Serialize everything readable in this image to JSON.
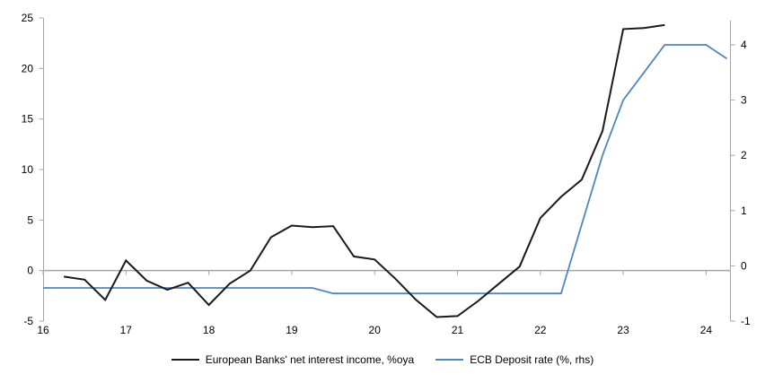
{
  "colors": {
    "axis_gray": "#a6a6a6",
    "zero_line_gray": "#a6a6a6",
    "black_series": "#1a1a1a",
    "blue_series": "#4e86be",
    "background": "#ffffff"
  },
  "legend": {
    "items": [
      {
        "label": "European Banks' net interest income, %oya"
      },
      {
        "label": "ECB Deposit rate (%, rhs)"
      }
    ]
  },
  "chart_data": {
    "type": "line",
    "title": "",
    "xlabel": "",
    "ylabel": "",
    "grid": false,
    "zero_line": true,
    "legend_position": "bottom-center",
    "x_axis": {
      "min": 16,
      "max": 24.3,
      "tick_values": [
        16,
        17,
        18,
        19,
        20,
        21,
        22,
        23,
        24
      ],
      "tick_labels": [
        "16",
        "17",
        "18",
        "19",
        "20",
        "21",
        "22",
        "23",
        "24"
      ]
    },
    "left_axis": {
      "min": -5,
      "max": 25,
      "tick_values": [
        25,
        20,
        15,
        10,
        5,
        0,
        -5
      ],
      "tick_labels": [
        "25",
        "20",
        "15",
        "10",
        "5",
        "0",
        "-5"
      ]
    },
    "right_axis": {
      "min": -1,
      "max": 4,
      "tick_values": [
        4,
        3,
        2,
        1,
        0,
        -1
      ],
      "tick_labels": [
        "4",
        "3",
        "2",
        "1",
        "0",
        "-1"
      ]
    },
    "series": [
      {
        "name": "European Banks' net interest income, %oya",
        "axis": "left",
        "color": "#1a1a1a",
        "x": [
          16.25,
          16.5,
          16.75,
          17.0,
          17.25,
          17.5,
          17.75,
          18.0,
          18.25,
          18.5,
          18.75,
          19.0,
          19.25,
          19.5,
          19.75,
          20.0,
          20.25,
          20.5,
          20.75,
          21.0,
          21.25,
          21.5,
          21.75,
          22.0,
          22.25,
          22.5,
          22.75,
          23.0,
          23.25,
          23.5
        ],
        "y": [
          -0.6,
          -0.9,
          -2.9,
          1.0,
          -1.0,
          -1.9,
          -1.2,
          -3.4,
          -1.3,
          0.0,
          3.3,
          4.45,
          4.3,
          4.4,
          1.4,
          1.1,
          -0.8,
          -2.9,
          -4.6,
          -4.5,
          -3.0,
          -1.3,
          0.4,
          5.2,
          7.3,
          9.0,
          13.8,
          23.9,
          24.0,
          24.3
        ]
      },
      {
        "name": "ECB Deposit rate (%, rhs)",
        "axis": "right",
        "color": "#4e86be",
        "x": [
          16.0,
          19.25,
          19.5,
          22.25,
          22.5,
          22.75,
          23.0,
          23.25,
          23.5,
          24.0,
          24.25
        ],
        "y": [
          -0.4,
          -0.4,
          -0.5,
          -0.5,
          0.75,
          2.0,
          3.0,
          3.5,
          4.0,
          4.0,
          3.75
        ]
      }
    ]
  }
}
